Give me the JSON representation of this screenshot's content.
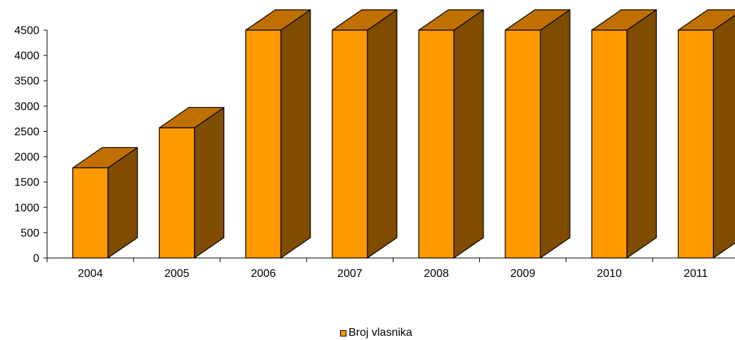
{
  "chart_data": {
    "type": "bar",
    "categories": [
      "2004",
      "2005",
      "2006",
      "2007",
      "2008",
      "2009",
      "2010",
      "2011"
    ],
    "series": [
      {
        "name": "Broj vlasnika",
        "values": [
          1780,
          2570,
          4500,
          4500,
          4500,
          4500,
          4500,
          4500
        ]
      }
    ],
    "title": "",
    "xlabel": "",
    "ylabel": "",
    "ylim": [
      0,
      4500
    ],
    "yticks": [
      0,
      500,
      1000,
      1500,
      2000,
      2500,
      3000,
      3500,
      4000,
      4500
    ],
    "grid": false,
    "legend_position": "bottom",
    "style": "3d-column",
    "colors": {
      "front": "#FF9900",
      "top": "#C07000",
      "side": "#804C00",
      "outline": "#000000"
    }
  }
}
